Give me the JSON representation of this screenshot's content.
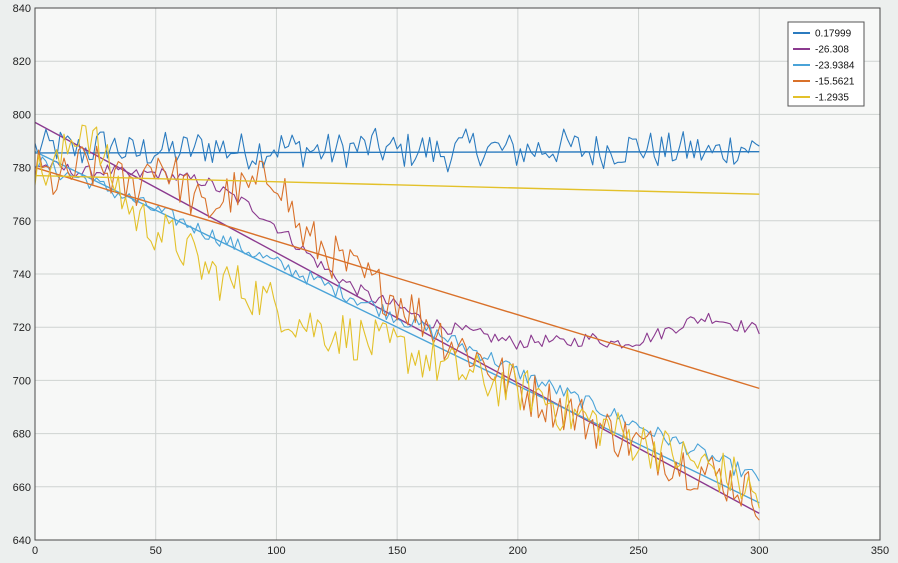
{
  "chart_data": {
    "type": "line",
    "title": "",
    "xlabel": "",
    "ylabel": "",
    "xlim": [
      0,
      350
    ],
    "ylim": [
      640,
      840
    ],
    "grid": true,
    "legend_position": "top-right",
    "x_ticks": [
      "0",
      "50",
      "100",
      "150",
      "200",
      "250",
      "300",
      "350"
    ],
    "y_ticks": [
      "640",
      "660",
      "680",
      "700",
      "720",
      "740",
      "760",
      "780",
      "800",
      "820",
      "840"
    ],
    "legend": [
      "0.17999",
      "-26.308",
      "-23.9384",
      "-15.5621",
      "-1.2935"
    ],
    "series": [
      {
        "name": "0.17999",
        "color": "#2b7bbf",
        "x": [
          0,
          10,
          20,
          30,
          40,
          50,
          60,
          70,
          80,
          90,
          100,
          110,
          120,
          130,
          140,
          150,
          160,
          170,
          180,
          190,
          200,
          210,
          220,
          230,
          240,
          250,
          260,
          270,
          280,
          290,
          300
        ],
        "values": [
          787,
          788,
          786,
          789,
          785,
          787,
          786,
          788,
          787,
          786,
          788,
          787,
          786,
          787,
          788,
          786,
          787,
          785,
          788,
          787,
          786,
          787,
          788,
          786,
          787,
          788,
          786,
          787,
          785,
          788,
          787
        ],
        "trend": [
          785.5,
          786
        ]
      },
      {
        "name": "-26.308",
        "color": "#8b3a8f",
        "x": [
          0,
          10,
          20,
          30,
          40,
          50,
          60,
          70,
          80,
          90,
          100,
          110,
          120,
          130,
          140,
          150,
          160,
          170,
          180,
          190,
          200,
          210,
          220,
          230,
          240,
          250,
          260,
          270,
          280,
          290,
          300
        ],
        "values": [
          781,
          780,
          778,
          779,
          777,
          778,
          776,
          775,
          770,
          765,
          758,
          750,
          742,
          736,
          731,
          728,
          723,
          720,
          718,
          716,
          714,
          715,
          714,
          716,
          714,
          715,
          718,
          722,
          724,
          721,
          719
        ],
        "trend": [
          797,
          650
        ]
      },
      {
        "name": "-23.9384",
        "color": "#4aa3d8",
        "x": [
          0,
          10,
          20,
          30,
          40,
          50,
          60,
          70,
          80,
          90,
          100,
          110,
          120,
          130,
          140,
          150,
          160,
          170,
          180,
          190,
          200,
          210,
          220,
          230,
          240,
          250,
          260,
          270,
          280,
          290,
          300
        ],
        "values": [
          783,
          778,
          776,
          772,
          768,
          764,
          760,
          756,
          752,
          748,
          744,
          740,
          736,
          732,
          728,
          724,
          720,
          716,
          712,
          708,
          703,
          699,
          695,
          691,
          687,
          683,
          679,
          675,
          671,
          667,
          663
        ],
        "trend": [
          786,
          654
        ]
      },
      {
        "name": "-15.5621",
        "color": "#d9712a",
        "x": [
          0,
          10,
          20,
          30,
          40,
          50,
          60,
          70,
          80,
          90,
          100,
          110,
          120,
          130,
          140,
          150,
          160,
          170,
          180,
          190,
          200,
          210,
          220,
          230,
          240,
          250,
          260,
          270,
          280,
          290,
          300
        ],
        "values": [
          779,
          774,
          781,
          778,
          771,
          784,
          775,
          763,
          770,
          772,
          779,
          755,
          749,
          742,
          736,
          731,
          724,
          716,
          711,
          704,
          697,
          693,
          689,
          684,
          680,
          676,
          672,
          668,
          665,
          661,
          656
        ],
        "trend": [
          780,
          697
        ]
      },
      {
        "name": "-1.2935",
        "color": "#e3c12a",
        "x": [
          0,
          10,
          20,
          30,
          40,
          50,
          60,
          70,
          80,
          90,
          100,
          110,
          120,
          130,
          140,
          150,
          160,
          170,
          180,
          190,
          200,
          210,
          220,
          230,
          240,
          250,
          260,
          270,
          280,
          290,
          300
        ],
        "values": [
          777,
          781,
          798,
          780,
          763,
          757,
          751,
          742,
          737,
          733,
          728,
          722,
          719,
          717,
          714,
          712,
          709,
          705,
          702,
          699,
          697,
          694,
          688,
          685,
          681,
          677,
          674,
          670,
          667,
          663,
          655
        ],
        "trend": [
          777,
          770
        ]
      }
    ]
  }
}
